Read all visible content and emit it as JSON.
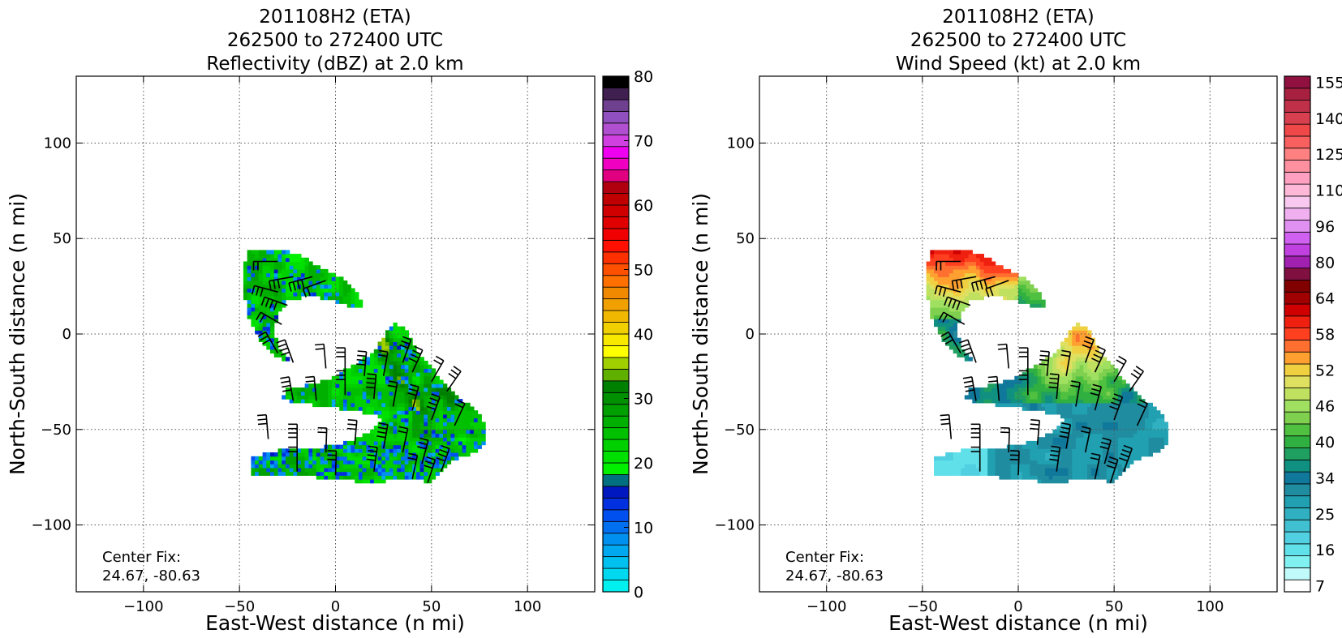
{
  "figure": {
    "background": "#ffffff"
  },
  "chart_data": [
    {
      "type": "heatmap",
      "title_lines": [
        "201108H2 (ETA)",
        "262500 to 272400 UTC",
        "Reflectivity (dBZ) at 2.0 km"
      ],
      "xlabel": "East-West distance (n mi)",
      "ylabel": "North-South distance (n mi)",
      "xlim": [
        -135,
        135
      ],
      "ylim": [
        -135,
        135
      ],
      "xticks": [
        -100,
        -50,
        0,
        50,
        100
      ],
      "yticks": [
        -100,
        -50,
        0,
        50,
        100
      ],
      "xtick_labels": [
        "−100",
        "−50",
        "0",
        "50",
        "100"
      ],
      "ytick_labels": [
        "−100",
        "−50",
        "0",
        "50",
        "100"
      ],
      "grid": true,
      "annotation_lines": [
        "Center Fix:",
        "24.67, -80.63"
      ],
      "colorbar": {
        "min": 0,
        "max": 80,
        "tick_values": [
          0,
          10,
          20,
          30,
          40,
          50,
          60,
          70,
          80
        ],
        "tick_labels": [
          "0",
          "10",
          "20",
          "30",
          "40",
          "50",
          "60",
          "70",
          "80"
        ],
        "colors": [
          "#00f0f0",
          "#00d8f0",
          "#00c0f0",
          "#00a8f0",
          "#0090f0",
          "#0070f0",
          "#0050f0",
          "#0030e0",
          "#0018c0",
          "#007080",
          "#00f000",
          "#00e000",
          "#00d000",
          "#00c000",
          "#00b000",
          "#00a000",
          "#009000",
          "#008000",
          "#60b000",
          "#a0d000",
          "#ffff00",
          "#f8e800",
          "#f0d000",
          "#f0b800",
          "#f0a000",
          "#f08800",
          "#ff7000",
          "#ff5000",
          "#ff3000",
          "#ff1000",
          "#f00000",
          "#e00000",
          "#d00000",
          "#c00000",
          "#b00010",
          "#e00080",
          "#f000c0",
          "#f000f0",
          "#d040e0",
          "#b050d0",
          "#9050c0",
          "#704090",
          "#402050",
          "#000000"
        ]
      },
      "wind_barbs": true
    },
    {
      "type": "heatmap",
      "title_lines": [
        "201108H2 (ETA)",
        "262500 to 272400 UTC",
        "Wind Speed (kt) at 2.0 km"
      ],
      "xlabel": "East-West distance (n mi)",
      "ylabel": "North-South distance (n mi)",
      "xlim": [
        -135,
        135
      ],
      "ylim": [
        -135,
        135
      ],
      "xticks": [
        -100,
        -50,
        0,
        50,
        100
      ],
      "yticks": [
        -100,
        -50,
        0,
        50,
        100
      ],
      "xtick_labels": [
        "−100",
        "−50",
        "0",
        "50",
        "100"
      ],
      "ytick_labels": [
        "−100",
        "−50",
        "0",
        "50",
        "100"
      ],
      "grid": true,
      "annotation_lines": [
        "Center Fix:",
        "24.67, -80.63"
      ],
      "colorbar": {
        "tick_labels": [
          "7",
          "16",
          "25",
          "34",
          "40",
          "46",
          "52",
          "58",
          "64",
          "80",
          "96",
          "110",
          "125",
          "140",
          "155"
        ],
        "colors": [
          "#ffffff",
          "#c0fafa",
          "#80f0f0",
          "#60e0e8",
          "#50d0e0",
          "#40c0d0",
          "#30b0c0",
          "#20a0b0",
          "#208ca0",
          "#10789a",
          "#109080",
          "#20a060",
          "#30b040",
          "#50c040",
          "#80d050",
          "#a0e060",
          "#c0e060",
          "#e0e060",
          "#f0d040",
          "#ffa030",
          "#ff7030",
          "#ff4020",
          "#f02010",
          "#d00000",
          "#a00000",
          "#800000",
          "#801040",
          "#a020b0",
          "#c040e0",
          "#d060f0",
          "#e090f0",
          "#f0b0f0",
          "#f8c8f0",
          "#ffb8d8",
          "#ffa0c0",
          "#ff90a0",
          "#ff8080",
          "#f86060",
          "#f04848",
          "#d84050",
          "#c03048",
          "#a82040",
          "#901040"
        ]
      },
      "wind_barbs": true
    }
  ]
}
